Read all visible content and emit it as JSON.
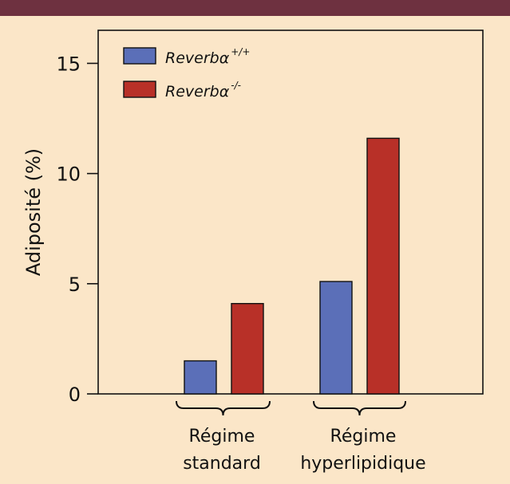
{
  "colors": {
    "background": "#fbe6c8",
    "topbar": "#6e3140",
    "plot_bg": "#fbe6c8",
    "axis": "#111111",
    "series_wt": "#5b6fb8",
    "series_ko": "#b83028"
  },
  "chart_data": {
    "type": "bar",
    "ylabel": "Adiposité (%)",
    "ylim": [
      0,
      16.5
    ],
    "yticks": [
      0,
      5,
      10,
      15
    ],
    "ytick_labels": [
      "0",
      "5",
      "10",
      "15"
    ],
    "categories": [
      {
        "line1": "Régime",
        "line2": "standard"
      },
      {
        "line1": "Régime",
        "line2": "hyperlipidique"
      }
    ],
    "series": [
      {
        "name": "Reverbα",
        "superscript": "+/+",
        "color": "#5b6fb8",
        "values": [
          1.5,
          5.1
        ]
      },
      {
        "name": "Reverbα",
        "superscript": "-/-",
        "color": "#b83028",
        "values": [
          4.1,
          11.6
        ]
      }
    ],
    "legend_position": "top-left",
    "grid": false
  }
}
